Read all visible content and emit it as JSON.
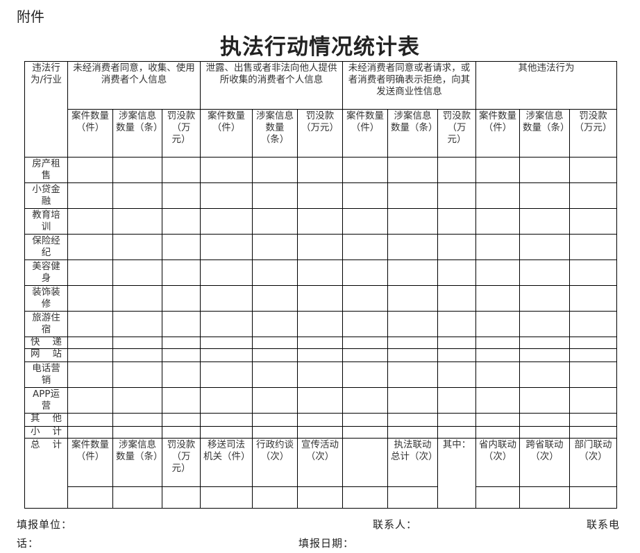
{
  "annex_label": "附件",
  "title": "执法行动情况统计表",
  "corner_header": "违法行为/行业",
  "groups": [
    "未经消费者同意，收集、使用消费者个人信息",
    "泄露、出售或者非法向他人提供所收集的消费者个人信息",
    "未经消费者同意或者请求，或者消费者明确表示拒绝，向其发送商业性信息",
    "其他违法行为"
  ],
  "sub_headers": [
    "案件数量（件）",
    "涉案信息数量（条）",
    "罚没款（万元）",
    "案件数量（件）",
    "涉案信息数量（条）",
    "罚没款（万元）",
    "案件数量（件）",
    "涉案信息数量（条）",
    "罚没款（万元）",
    "案件数量（件）",
    "涉案信息数量（条）",
    "罚没款（万元）"
  ],
  "rows": [
    "房产租售",
    "小贷金融",
    "教育培训",
    "保险经纪",
    "美容健身",
    "装饰装修",
    "旅游住宿",
    "快递",
    "网站",
    "电话营销",
    "APP运营",
    "其他",
    "小计"
  ],
  "total": {
    "label": "总计",
    "headers": [
      "案件数量（件）",
      "涉案信息数量（条）",
      "罚没款（万元）",
      "移送司法机关（件）",
      "行政约谈（次）",
      "宣传活动（次）",
      "",
      "执法联动总计（次）",
      "其中：",
      "省内联动（次）",
      "跨省联动（次）",
      "部门联动（次）"
    ]
  },
  "footer": {
    "unit": "填报单位：",
    "contact": "联系人：",
    "phone_a": "联系电",
    "phone_b": "话：",
    "date": "填报日期："
  }
}
